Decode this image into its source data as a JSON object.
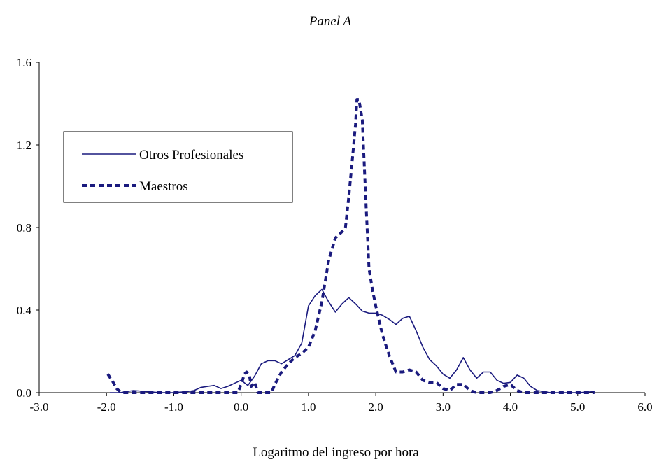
{
  "chart_data": {
    "type": "line",
    "title": "Panel A",
    "xlabel": "Logaritmo del ingreso por hora",
    "ylabel": "",
    "xlim": [
      -3.0,
      6.0
    ],
    "ylim": [
      0.0,
      1.6
    ],
    "x_ticks": [
      -3.0,
      -2.0,
      -1.0,
      0.0,
      1.0,
      2.0,
      3.0,
      4.0,
      5.0,
      6.0
    ],
    "x_tick_labels": [
      "-3.0",
      "-2.0",
      "-1.0",
      "0.0",
      "1.0",
      "2.0",
      "3.0",
      "4.0",
      "5.0",
      "6.0"
    ],
    "y_ticks": [
      0.0,
      0.4,
      0.8,
      1.2,
      1.6
    ],
    "y_tick_labels": [
      "0.0",
      "0.4",
      "0.8",
      "1.2",
      "1.6"
    ],
    "grid": false,
    "legend_position": "upper-left",
    "series": [
      {
        "name": "Otros Profesionales",
        "style": "solid",
        "color": "#1a1a7e",
        "x": [
          -1.95,
          -1.8,
          -1.6,
          -1.4,
          -1.2,
          -1.0,
          -0.8,
          -0.7,
          -0.6,
          -0.5,
          -0.4,
          -0.3,
          -0.2,
          -0.1,
          0.0,
          0.1,
          0.2,
          0.3,
          0.4,
          0.5,
          0.6,
          0.7,
          0.8,
          0.9,
          1.0,
          1.1,
          1.2,
          1.3,
          1.4,
          1.5,
          1.6,
          1.7,
          1.8,
          1.9,
          2.0,
          2.1,
          2.2,
          2.3,
          2.4,
          2.5,
          2.6,
          2.7,
          2.8,
          2.9,
          3.0,
          3.1,
          3.2,
          3.3,
          3.4,
          3.5,
          3.6,
          3.7,
          3.8,
          3.9,
          4.0,
          4.1,
          4.2,
          4.3,
          4.4,
          4.6,
          4.8,
          5.0,
          5.25
        ],
        "y": [
          0.0,
          0.0,
          0.01,
          0.005,
          0.0,
          0.0,
          0.005,
          0.01,
          0.025,
          0.03,
          0.035,
          0.02,
          0.03,
          0.045,
          0.06,
          0.035,
          0.08,
          0.14,
          0.155,
          0.155,
          0.14,
          0.16,
          0.18,
          0.24,
          0.42,
          0.47,
          0.5,
          0.44,
          0.39,
          0.43,
          0.46,
          0.43,
          0.395,
          0.385,
          0.385,
          0.375,
          0.355,
          0.33,
          0.36,
          0.37,
          0.3,
          0.22,
          0.16,
          0.13,
          0.09,
          0.07,
          0.11,
          0.17,
          0.11,
          0.07,
          0.1,
          0.1,
          0.06,
          0.045,
          0.05,
          0.085,
          0.07,
          0.03,
          0.01,
          0.0,
          0.0,
          0.0,
          0.005
        ]
      },
      {
        "name": "Maestros",
        "style": "dashed",
        "color": "#1a1a7e",
        "x": [
          -1.98,
          -1.9,
          -1.85,
          -1.78,
          -1.6,
          -1.4,
          -1.2,
          -1.0,
          -0.8,
          -0.6,
          -0.4,
          -0.2,
          -0.05,
          0.0,
          0.05,
          0.08,
          0.12,
          0.15,
          0.2,
          0.25,
          0.3,
          0.38,
          0.45,
          0.5,
          0.6,
          0.7,
          0.8,
          0.9,
          1.0,
          1.1,
          1.2,
          1.3,
          1.4,
          1.5,
          1.55,
          1.6,
          1.65,
          1.7,
          1.72,
          1.75,
          1.8,
          1.85,
          1.9,
          1.95,
          2.0,
          2.05,
          2.1,
          2.2,
          2.3,
          2.4,
          2.5,
          2.6,
          2.7,
          2.8,
          2.9,
          3.0,
          3.1,
          3.2,
          3.3,
          3.4,
          3.5,
          3.6,
          3.7,
          3.8,
          3.9,
          4.0,
          4.1,
          4.2,
          4.4,
          4.6,
          4.8,
          5.0,
          5.25
        ],
        "y": [
          0.09,
          0.05,
          0.02,
          0.0,
          0.0,
          0.0,
          0.0,
          0.0,
          0.0,
          0.0,
          0.0,
          0.0,
          0.0,
          0.04,
          0.09,
          0.1,
          0.09,
          0.03,
          0.05,
          0.0,
          0.0,
          0.0,
          0.0,
          0.04,
          0.1,
          0.14,
          0.17,
          0.19,
          0.22,
          0.3,
          0.44,
          0.64,
          0.75,
          0.78,
          0.8,
          0.95,
          1.12,
          1.3,
          1.42,
          1.42,
          1.32,
          0.95,
          0.6,
          0.5,
          0.42,
          0.35,
          0.28,
          0.18,
          0.1,
          0.1,
          0.11,
          0.1,
          0.06,
          0.05,
          0.05,
          0.02,
          0.01,
          0.04,
          0.04,
          0.01,
          0.0,
          0.0,
          0.0,
          0.01,
          0.03,
          0.04,
          0.01,
          0.0,
          0.0,
          0.0,
          0.0,
          0.0,
          0.0
        ]
      }
    ]
  }
}
